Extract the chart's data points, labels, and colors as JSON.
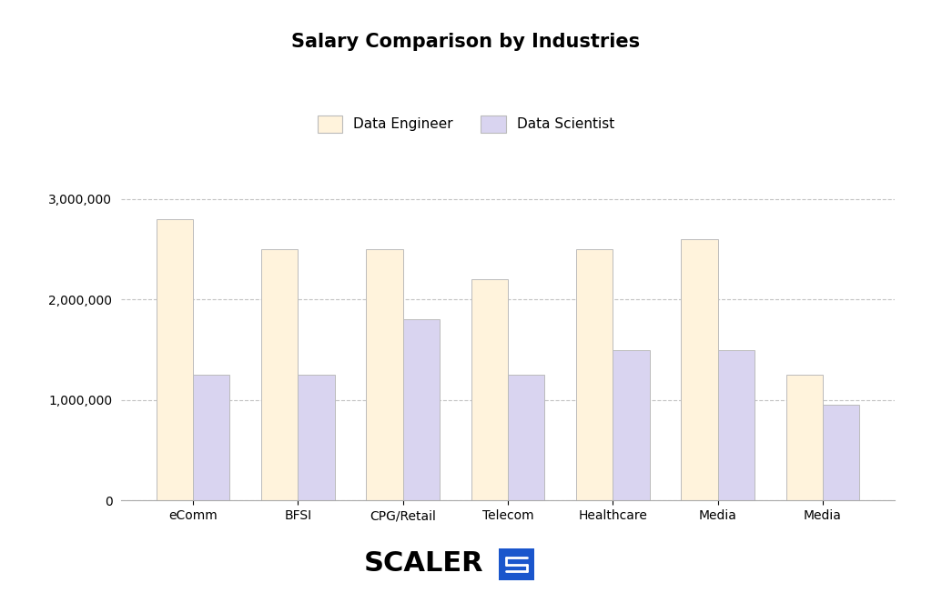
{
  "title": "Salary Comparison by Industries",
  "categories": [
    "eComm",
    "BFSI",
    "CPG/Retail",
    "Telecom",
    "Healthcare",
    "Media",
    "Media"
  ],
  "data_engineer": [
    2800000,
    2500000,
    2500000,
    2200000,
    2500000,
    2600000,
    1250000
  ],
  "data_scientist": [
    1250000,
    1250000,
    1800000,
    1250000,
    1500000,
    1500000,
    950000
  ],
  "bar_color_engineer": "#FFF3DC",
  "bar_color_scientist": "#D9D4F0",
  "bar_edge_color": "#BBBBBB",
  "background_color": "#FFFFFF",
  "title_fontsize": 15,
  "legend_fontsize": 11,
  "tick_fontsize": 10,
  "ylim": [
    0,
    3300000
  ],
  "yticks": [
    0,
    1000000,
    2000000,
    3000000
  ],
  "grid_color": "#AAAAAA",
  "scaler_text": "SCALER",
  "legend_engineer": "Data Engineer",
  "legend_scientist": "Data Scientist",
  "icon_color": "#1A56CC"
}
